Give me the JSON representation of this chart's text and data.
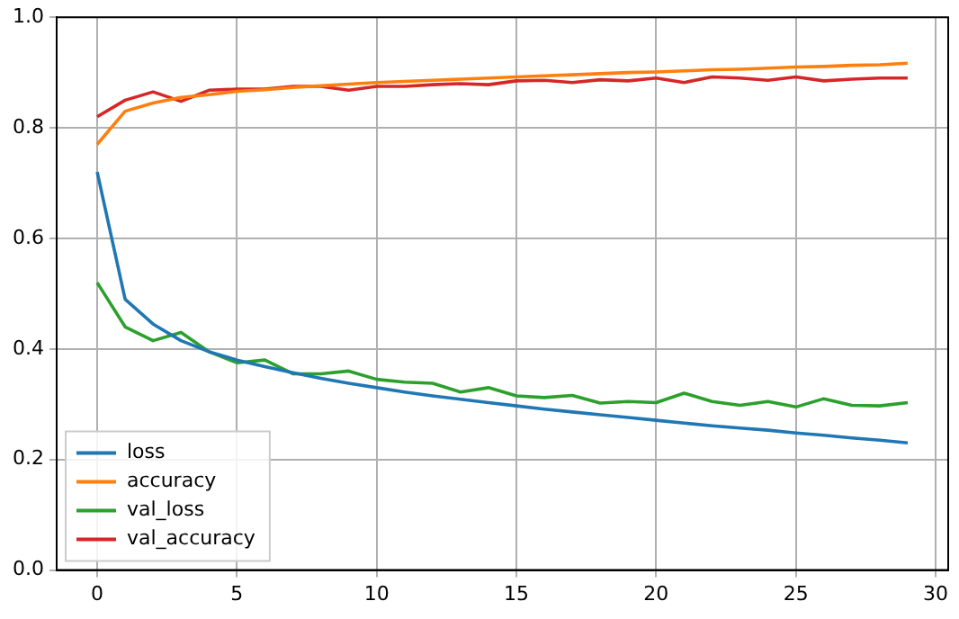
{
  "chart_data": {
    "type": "line",
    "x": [
      0,
      1,
      2,
      3,
      4,
      5,
      6,
      7,
      8,
      9,
      10,
      11,
      12,
      13,
      14,
      15,
      16,
      17,
      18,
      19,
      20,
      21,
      22,
      23,
      24,
      25,
      26,
      27,
      28,
      29
    ],
    "series": [
      {
        "name": "loss",
        "color": "#1f77b4",
        "values": [
          0.72,
          0.49,
          0.445,
          0.415,
          0.395,
          0.38,
          0.368,
          0.357,
          0.347,
          0.338,
          0.33,
          0.322,
          0.315,
          0.309,
          0.303,
          0.297,
          0.291,
          0.286,
          0.281,
          0.276,
          0.271,
          0.266,
          0.261,
          0.257,
          0.253,
          0.248,
          0.244,
          0.239,
          0.235,
          0.23
        ]
      },
      {
        "name": "accuracy",
        "color": "#ff7f0e",
        "values": [
          0.77,
          0.83,
          0.845,
          0.855,
          0.86,
          0.866,
          0.869,
          0.873,
          0.876,
          0.879,
          0.882,
          0.884,
          0.886,
          0.888,
          0.89,
          0.892,
          0.894,
          0.896,
          0.898,
          0.9,
          0.901,
          0.903,
          0.905,
          0.906,
          0.908,
          0.91,
          0.911,
          0.913,
          0.914,
          0.917
        ]
      },
      {
        "name": "val_loss",
        "color": "#2ca02c",
        "values": [
          0.52,
          0.44,
          0.415,
          0.43,
          0.395,
          0.375,
          0.38,
          0.355,
          0.355,
          0.36,
          0.345,
          0.34,
          0.338,
          0.322,
          0.33,
          0.315,
          0.312,
          0.316,
          0.302,
          0.305,
          0.303,
          0.32,
          0.305,
          0.298,
          0.305,
          0.295,
          0.31,
          0.298,
          0.297,
          0.303
        ]
      },
      {
        "name": "val_accuracy",
        "color": "#d62728",
        "values": [
          0.82,
          0.85,
          0.865,
          0.848,
          0.868,
          0.87,
          0.87,
          0.875,
          0.875,
          0.868,
          0.875,
          0.875,
          0.878,
          0.88,
          0.878,
          0.885,
          0.886,
          0.882,
          0.887,
          0.885,
          0.89,
          0.882,
          0.892,
          0.89,
          0.886,
          0.892,
          0.885,
          0.888,
          0.89,
          0.89
        ]
      }
    ],
    "xlim": [
      -1.45,
      30.45
    ],
    "xticks": [
      0,
      5,
      10,
      15,
      20,
      25,
      30
    ],
    "ylim": [
      0,
      1
    ],
    "yticks": [
      {
        "value": 0,
        "label": "0.0"
      },
      {
        "value": 0.2,
        "label": "0.2"
      },
      {
        "value": 0.4,
        "label": "0.4"
      },
      {
        "value": 0.6,
        "label": "0.6"
      },
      {
        "value": 0.8,
        "label": "0.8"
      },
      {
        "value": 1,
        "label": "1.0"
      }
    ],
    "grid": true,
    "legend": "bottom left",
    "marker": "none",
    "line_style": "solid"
  }
}
